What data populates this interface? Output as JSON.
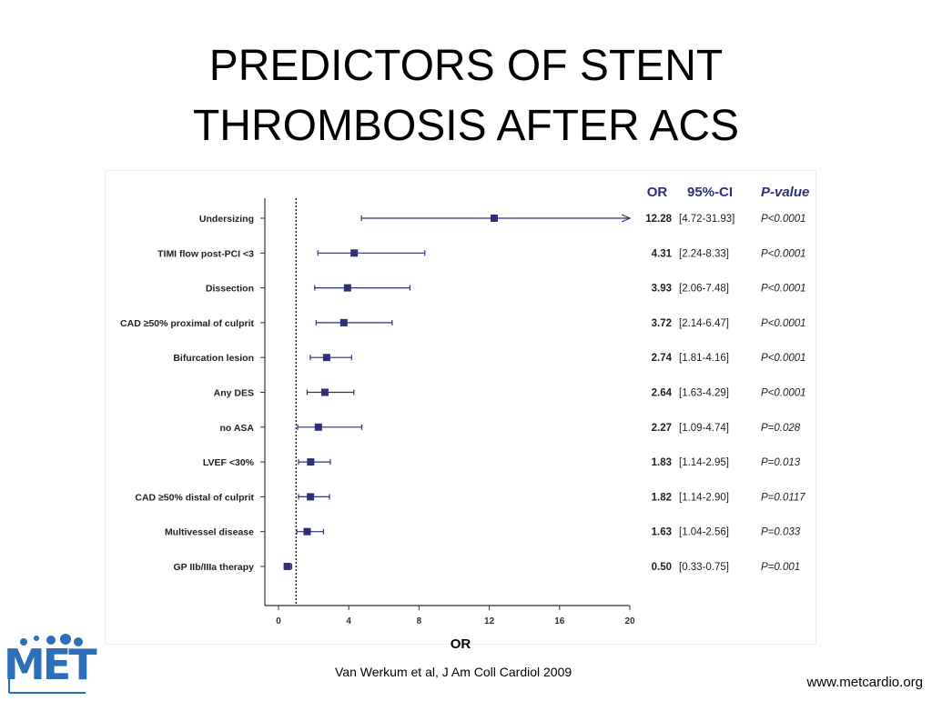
{
  "slide": {
    "title_line1": "PREDICTORS OF STENT",
    "title_line2": "THROMBOSIS AFTER ACS",
    "citation": "Van Werkum et al, J Am Coll Cardiol  2009",
    "url": "www.metcardio.org",
    "logo_text": "MET",
    "x_axis_label": "OR"
  },
  "chart_data": {
    "type": "forest",
    "column_headers": [
      "OR",
      "95%-CI",
      "P-value"
    ],
    "reference_line": 1,
    "xlim": [
      0,
      20
    ],
    "xticks": [
      0,
      4,
      8,
      12,
      16,
      20
    ],
    "xlabel": "OR",
    "marker_color": "#2e2f7a",
    "rows": [
      {
        "label": "Undersizing",
        "or": 12.28,
        "lo": 4.72,
        "hi": 31.93,
        "or_text": "12.28",
        "ci_text": "[4.72-31.93]",
        "p_text": "P<0.0001"
      },
      {
        "label": "TIMI flow post-PCI <3",
        "or": 4.31,
        "lo": 2.24,
        "hi": 8.33,
        "or_text": "4.31",
        "ci_text": "[2.24-8.33]",
        "p_text": "P<0.0001"
      },
      {
        "label": "Dissection",
        "or": 3.93,
        "lo": 2.06,
        "hi": 7.48,
        "or_text": "3.93",
        "ci_text": "[2.06-7.48]",
        "p_text": "P<0.0001"
      },
      {
        "label": "CAD ≥50% proximal of culprit",
        "or": 3.72,
        "lo": 2.14,
        "hi": 6.47,
        "or_text": "3.72",
        "ci_text": "[2.14-6.47]",
        "p_text": "P<0.0001"
      },
      {
        "label": "Bifurcation lesion",
        "or": 2.74,
        "lo": 1.81,
        "hi": 4.16,
        "or_text": "2.74",
        "ci_text": "[1.81-4.16]",
        "p_text": "P<0.0001"
      },
      {
        "label": "Any DES",
        "or": 2.64,
        "lo": 1.63,
        "hi": 4.29,
        "or_text": "2.64",
        "ci_text": "[1.63-4.29]",
        "p_text": "P<0.0001"
      },
      {
        "label": "no ASA",
        "or": 2.27,
        "lo": 1.09,
        "hi": 4.74,
        "or_text": "2.27",
        "ci_text": "[1.09-4.74]",
        "p_text": "P=0.028"
      },
      {
        "label": "LVEF <30%",
        "or": 1.83,
        "lo": 1.14,
        "hi": 2.95,
        "or_text": "1.83",
        "ci_text": "[1.14-2.95]",
        "p_text": "P=0.013"
      },
      {
        "label": "CAD ≥50% distal of culprit",
        "or": 1.82,
        "lo": 1.14,
        "hi": 2.9,
        "or_text": "1.82",
        "ci_text": "[1.14-2.90]",
        "p_text": "P=0.0117"
      },
      {
        "label": "Multivessel disease",
        "or": 1.63,
        "lo": 1.04,
        "hi": 2.56,
        "or_text": "1.63",
        "ci_text": "[1.04-2.56]",
        "p_text": "P=0.033"
      },
      {
        "label": "GP IIb/IIIa therapy",
        "or": 0.5,
        "lo": 0.33,
        "hi": 0.75,
        "or_text": "0.50",
        "ci_text": "[0.33-0.75]",
        "p_text": "P=0.001"
      }
    ]
  }
}
